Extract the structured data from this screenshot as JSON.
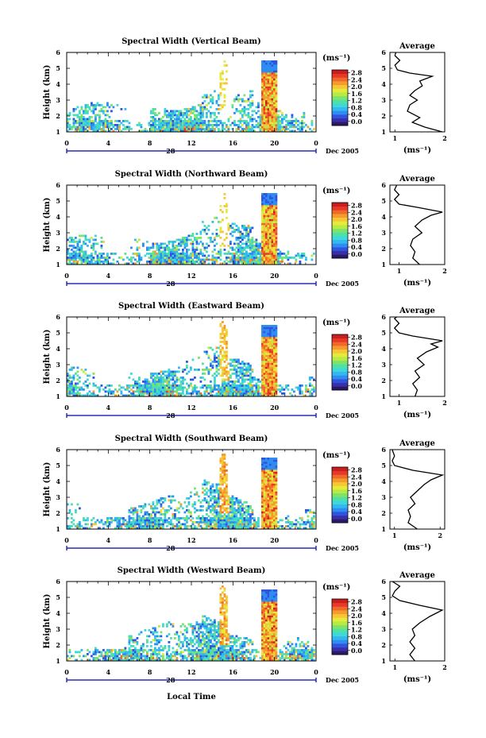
{
  "figure": {
    "x_label": "Local Time",
    "day_label": "28",
    "date_label": "Dec 2005",
    "unit_label": "(ms⁻¹)",
    "avg_title": "Average"
  },
  "colors": [
    "#2a1a66",
    "#3a2fa8",
    "#2f55e0",
    "#2f8cf0",
    "#33b8f0",
    "#3fd8d8",
    "#4fe0a8",
    "#7fe36a",
    "#b8ea45",
    "#e6ea3a",
    "#f6c634",
    "#f59a2c",
    "#ef6a28",
    "#e8382a",
    "#c81e1e"
  ],
  "chart_data": [
    {
      "type": "heatmap",
      "title": "Spectral Width (Vertical Beam)",
      "ylabel": "Height (km)",
      "x_ticks": [
        "0",
        "4",
        "8",
        "12",
        "16",
        "20",
        "0"
      ],
      "y_ticks": [
        "1",
        "2",
        "3",
        "4",
        "5",
        "6"
      ],
      "xlim": [
        0,
        24
      ],
      "ylim": [
        1,
        6
      ],
      "colorbar_ticks": [
        "2.8",
        "2.4",
        "2.0",
        "1.6",
        "1.2",
        "0.8",
        "0.4",
        "0.0"
      ],
      "colorbar_range": [
        0.0,
        2.8
      ],
      "average": {
        "title": "Average",
        "x_ticks": [
          "1",
          "2"
        ],
        "y_ticks": [
          "1",
          "2",
          "3",
          "4",
          "5",
          "6"
        ],
        "xlim": [
          0.9,
          2.0
        ],
        "ylim": [
          1,
          6
        ],
        "xlabel": "(ms⁻¹)",
        "profile": [
          [
            1.95,
            1.0
          ],
          [
            1.6,
            1.3
          ],
          [
            1.35,
            1.6
          ],
          [
            1.5,
            1.9
          ],
          [
            1.25,
            2.3
          ],
          [
            1.3,
            2.7
          ],
          [
            1.45,
            3.0
          ],
          [
            1.3,
            3.3
          ],
          [
            1.4,
            3.6
          ],
          [
            1.55,
            3.9
          ],
          [
            1.5,
            4.2
          ],
          [
            1.75,
            4.5
          ],
          [
            1.3,
            4.7
          ],
          [
            1.05,
            4.9
          ],
          [
            1.0,
            5.2
          ],
          [
            1.1,
            5.5
          ],
          [
            1.0,
            5.8
          ],
          [
            1.02,
            6.0
          ]
        ]
      }
    },
    {
      "type": "heatmap",
      "title": "Spectral Width (Northward Beam)",
      "ylabel": "Height (km)",
      "x_ticks": [
        "0",
        "4",
        "8",
        "12",
        "16",
        "20",
        "0"
      ],
      "y_ticks": [
        "1",
        "2",
        "3",
        "4",
        "5",
        "6"
      ],
      "xlim": [
        0,
        24
      ],
      "ylim": [
        1,
        6
      ],
      "colorbar_ticks": [
        "2.8",
        "2.4",
        "2.0",
        "1.6",
        "1.2",
        "0.8",
        "0.4",
        "0.0"
      ],
      "colorbar_range": [
        0.0,
        2.8
      ],
      "average": {
        "title": "Average",
        "x_ticks": [
          "1",
          "2"
        ],
        "y_ticks": [
          "1",
          "2",
          "3",
          "4",
          "5",
          "6"
        ],
        "xlim": [
          0.8,
          2.0
        ],
        "ylim": [
          1,
          6
        ],
        "xlabel": "(ms⁻¹)",
        "profile": [
          [
            1.45,
            1.0
          ],
          [
            1.3,
            1.4
          ],
          [
            1.35,
            1.8
          ],
          [
            1.25,
            2.2
          ],
          [
            1.3,
            2.6
          ],
          [
            1.5,
            3.0
          ],
          [
            1.35,
            3.4
          ],
          [
            1.5,
            3.8
          ],
          [
            1.7,
            4.1
          ],
          [
            1.95,
            4.3
          ],
          [
            1.4,
            4.6
          ],
          [
            1.0,
            4.8
          ],
          [
            0.9,
            5.1
          ],
          [
            1.0,
            5.4
          ],
          [
            0.9,
            5.7
          ],
          [
            0.95,
            6.0
          ]
        ]
      }
    },
    {
      "type": "heatmap",
      "title": "Spectral Width (Eastward Beam)",
      "ylabel": "Height (km)",
      "x_ticks": [
        "0",
        "4",
        "8",
        "12",
        "16",
        "20",
        "0"
      ],
      "y_ticks": [
        "1",
        "2",
        "3",
        "4",
        "5",
        "6"
      ],
      "xlim": [
        0,
        24
      ],
      "ylim": [
        1,
        6
      ],
      "colorbar_ticks": [
        "2.8",
        "2.4",
        "2.0",
        "1.6",
        "1.2",
        "0.8",
        "0.4",
        "0.0"
      ],
      "colorbar_range": [
        0.0,
        2.8
      ],
      "average": {
        "title": "Average",
        "x_ticks": [
          "1",
          "2"
        ],
        "y_ticks": [
          "1",
          "2",
          "3",
          "4",
          "5",
          "6"
        ],
        "xlim": [
          0.8,
          2.0
        ],
        "ylim": [
          1,
          6
        ],
        "xlabel": "(ms⁻¹)",
        "profile": [
          [
            1.35,
            1.0
          ],
          [
            1.4,
            1.4
          ],
          [
            1.3,
            1.8
          ],
          [
            1.45,
            2.2
          ],
          [
            1.35,
            2.6
          ],
          [
            1.55,
            3.0
          ],
          [
            1.4,
            3.4
          ],
          [
            1.6,
            3.8
          ],
          [
            1.85,
            4.1
          ],
          [
            1.7,
            4.3
          ],
          [
            1.95,
            4.5
          ],
          [
            1.3,
            4.8
          ],
          [
            1.0,
            5.0
          ],
          [
            0.9,
            5.3
          ],
          [
            1.0,
            5.6
          ],
          [
            0.9,
            5.9
          ],
          [
            0.95,
            6.0
          ]
        ]
      }
    },
    {
      "type": "heatmap",
      "title": "Spectral Width (Southward Beam)",
      "ylabel": "Height (km)",
      "x_ticks": [
        "0",
        "4",
        "8",
        "12",
        "16",
        "20",
        "0"
      ],
      "y_ticks": [
        "1",
        "2",
        "3",
        "4",
        "5",
        "6"
      ],
      "xlim": [
        0,
        24
      ],
      "ylim": [
        1,
        6
      ],
      "colorbar_ticks": [
        "2.8",
        "2.4",
        "2.0",
        "1.6",
        "1.2",
        "0.8",
        "0.4",
        "0.0"
      ],
      "colorbar_range": [
        0.0,
        2.8
      ],
      "average": {
        "title": "Average",
        "x_ticks": [
          "1",
          "2"
        ],
        "y_ticks": [
          "1",
          "2",
          "3",
          "4",
          "5",
          "6"
        ],
        "xlim": [
          0.9,
          2.1
        ],
        "ylim": [
          1,
          6
        ],
        "xlabel": "(ms⁻¹)",
        "profile": [
          [
            1.5,
            1.0
          ],
          [
            1.3,
            1.4
          ],
          [
            1.35,
            1.8
          ],
          [
            1.3,
            2.2
          ],
          [
            1.45,
            2.6
          ],
          [
            1.35,
            3.0
          ],
          [
            1.5,
            3.4
          ],
          [
            1.65,
            3.8
          ],
          [
            1.8,
            4.1
          ],
          [
            2.05,
            4.4
          ],
          [
            1.4,
            4.7
          ],
          [
            1.0,
            5.0
          ],
          [
            0.95,
            5.3
          ],
          [
            1.0,
            5.6
          ],
          [
            0.95,
            6.0
          ]
        ]
      }
    },
    {
      "type": "heatmap",
      "title": "Spectral Width (Westward Beam)",
      "ylabel": "Height (km)",
      "x_ticks": [
        "0",
        "4",
        "8",
        "12",
        "16",
        "20",
        "0"
      ],
      "y_ticks": [
        "1",
        "2",
        "3",
        "4",
        "5",
        "6"
      ],
      "xlim": [
        0,
        24
      ],
      "ylim": [
        1,
        6
      ],
      "colorbar_ticks": [
        "2.8",
        "2.4",
        "2.0",
        "1.6",
        "1.2",
        "0.8",
        "0.4",
        "0.0"
      ],
      "colorbar_range": [
        0.0,
        2.8
      ],
      "average": {
        "title": "Average",
        "x_ticks": [
          "1",
          "2"
        ],
        "y_ticks": [
          "1",
          "2",
          "3",
          "4",
          "5",
          "6"
        ],
        "xlim": [
          0.9,
          2.0
        ],
        "ylim": [
          1,
          6
        ],
        "xlabel": "(ms⁻¹)",
        "profile": [
          [
            1.4,
            1.0
          ],
          [
            1.3,
            1.4
          ],
          [
            1.4,
            1.8
          ],
          [
            1.3,
            2.2
          ],
          [
            1.4,
            2.6
          ],
          [
            1.35,
            3.0
          ],
          [
            1.5,
            3.4
          ],
          [
            1.7,
            3.8
          ],
          [
            1.95,
            4.2
          ],
          [
            1.5,
            4.5
          ],
          [
            1.1,
            4.8
          ],
          [
            0.95,
            5.1
          ],
          [
            1.0,
            5.4
          ],
          [
            1.1,
            5.7
          ],
          [
            0.95,
            6.0
          ]
        ]
      }
    }
  ]
}
